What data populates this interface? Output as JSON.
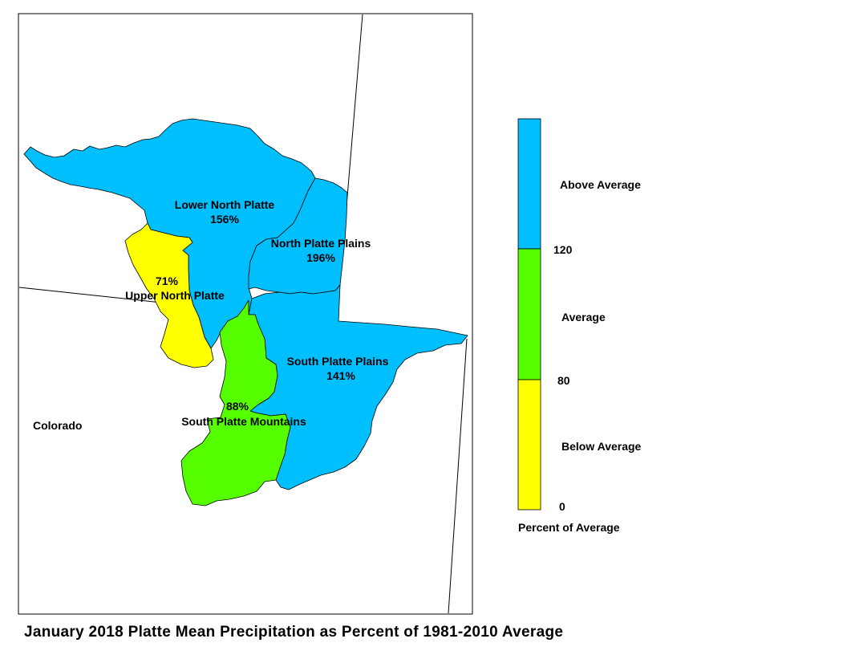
{
  "title": "January 2018 Platte Mean Precipitation as Percent of 1981-2010 Average",
  "state_label": "Colorado",
  "colors": {
    "above": "#00BFFF",
    "average": "#55FF00",
    "below": "#FFFF00",
    "outline": "#000000"
  },
  "basins": [
    {
      "name": "Lower North Platte",
      "value": "156%",
      "category": "above"
    },
    {
      "name": "North Platte Plains",
      "value": "196%",
      "category": "above"
    },
    {
      "name": "Upper North Platte",
      "value": "71%",
      "category": "below"
    },
    {
      "name": "South Platte Plains",
      "value": "141%",
      "category": "above"
    },
    {
      "name": "South Platte Mountains",
      "value": "88%",
      "category": "average"
    }
  ],
  "legend": {
    "title": "Percent of Average",
    "classes": [
      {
        "label": "Above Average",
        "category": "above"
      },
      {
        "label": "Average",
        "category": "average"
      },
      {
        "label": "Below Average",
        "category": "below"
      }
    ],
    "breaks": [
      "120",
      "80",
      "0"
    ]
  }
}
